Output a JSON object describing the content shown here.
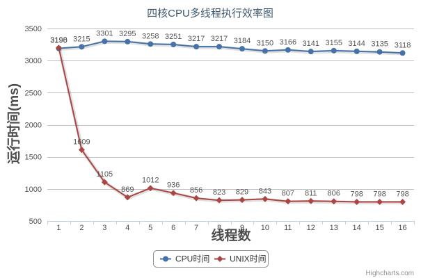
{
  "chart_data": {
    "type": "line",
    "title": "四核CPU多线程执行效率图",
    "xlabel": "线程数",
    "ylabel": "运行时间(ms)",
    "categories": [
      "1",
      "2",
      "3",
      "4",
      "5",
      "6",
      "7",
      "8",
      "9",
      "10",
      "11",
      "12",
      "13",
      "14",
      "15",
      "16"
    ],
    "ylim": [
      500,
      3500
    ],
    "yticks": [
      500,
      1000,
      1500,
      2000,
      2500,
      3000,
      3500
    ],
    "grid": true,
    "legend_position": "bottom-center",
    "series": [
      {
        "name": "CPU时间",
        "color": "#4572a7",
        "marker": "circle",
        "values": [
          3190,
          3215,
          3301,
          3295,
          3258,
          3251,
          3217,
          3217,
          3184,
          3150,
          3166,
          3141,
          3155,
          3144,
          3135,
          3118
        ]
      },
      {
        "name": "UNIX时间",
        "color": "#aa4643",
        "marker": "diamond",
        "values": [
          3198,
          1609,
          1105,
          869,
          1012,
          936,
          856,
          823,
          829,
          843,
          807,
          811,
          806,
          798,
          798,
          798
        ]
      }
    ]
  },
  "credits": "Highcharts.com"
}
